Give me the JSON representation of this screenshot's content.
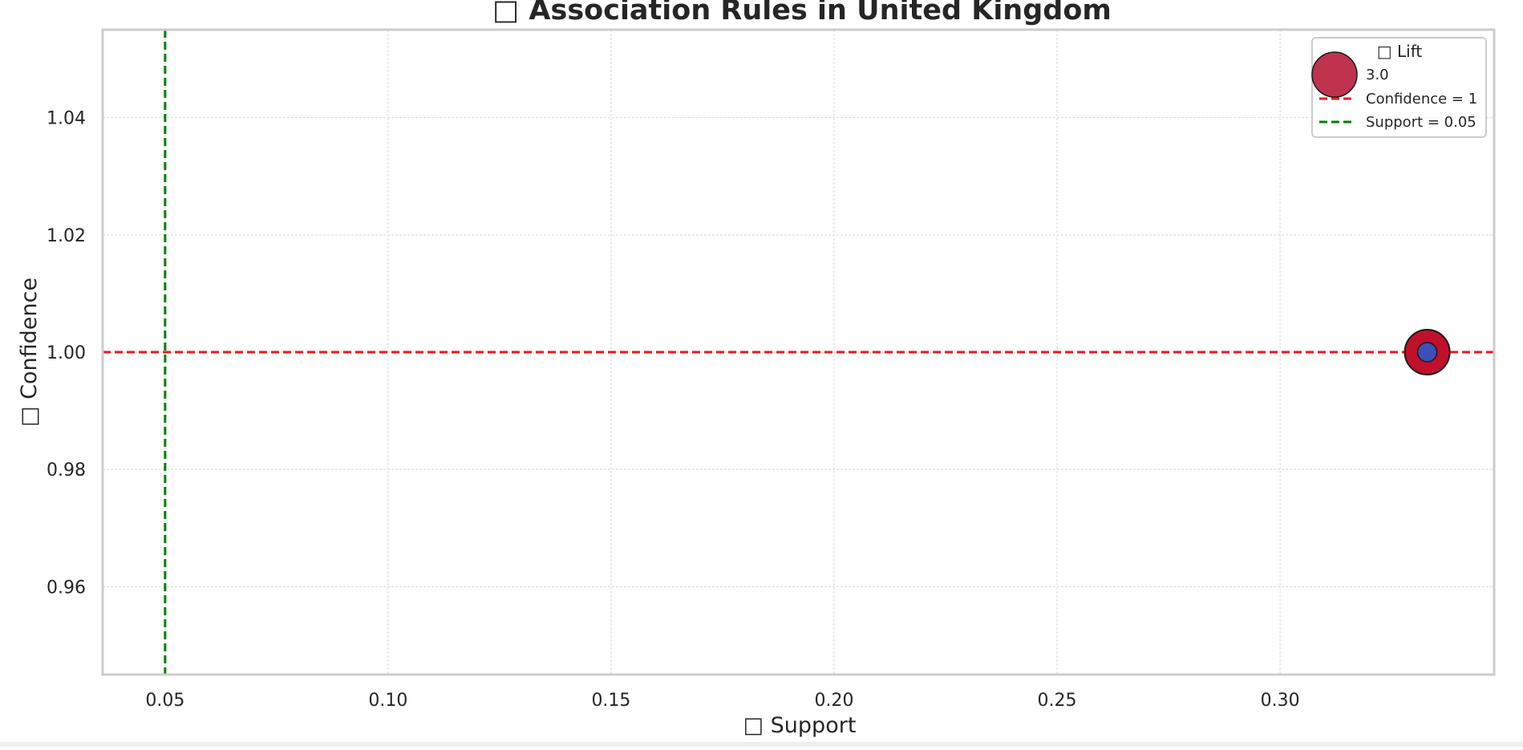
{
  "chart_data": {
    "type": "scatter",
    "title": "□ Association Rules in United Kingdom",
    "xlabel": "□ Support",
    "ylabel": "□ Confidence",
    "xlim": [
      0.036,
      0.348
    ],
    "ylim": [
      0.945,
      1.055
    ],
    "xticks": [
      0.05,
      0.1,
      0.15,
      0.2,
      0.25,
      0.3
    ],
    "xtick_labels": [
      "0.05",
      "0.10",
      "0.15",
      "0.20",
      "0.25",
      "0.30"
    ],
    "yticks": [
      0.96,
      0.98,
      1.0,
      1.02,
      1.04
    ],
    "ytick_labels": [
      "0.96",
      "0.98",
      "1.00",
      "1.02",
      "1.04"
    ],
    "grid": true,
    "points": [
      {
        "x": 0.333,
        "y": 1.0,
        "lift": 3.0,
        "color": "#c0102c",
        "edge": "#1a1a1a"
      }
    ],
    "reference_lines": [
      {
        "orientation": "horizontal",
        "value": 1.0,
        "color": "#e31a1c",
        "style": "dashed",
        "label": "Confidence = 1"
      },
      {
        "orientation": "vertical",
        "value": 0.05,
        "color": "#008000",
        "style": "dashed",
        "label": "Support = 0.05"
      }
    ],
    "legend": {
      "position": "top-right",
      "title": "□ Lift",
      "size_entry_label": "3.0",
      "size_entry_color": "#c0334f"
    },
    "marker_inner_color": "#3d4fb8"
  }
}
